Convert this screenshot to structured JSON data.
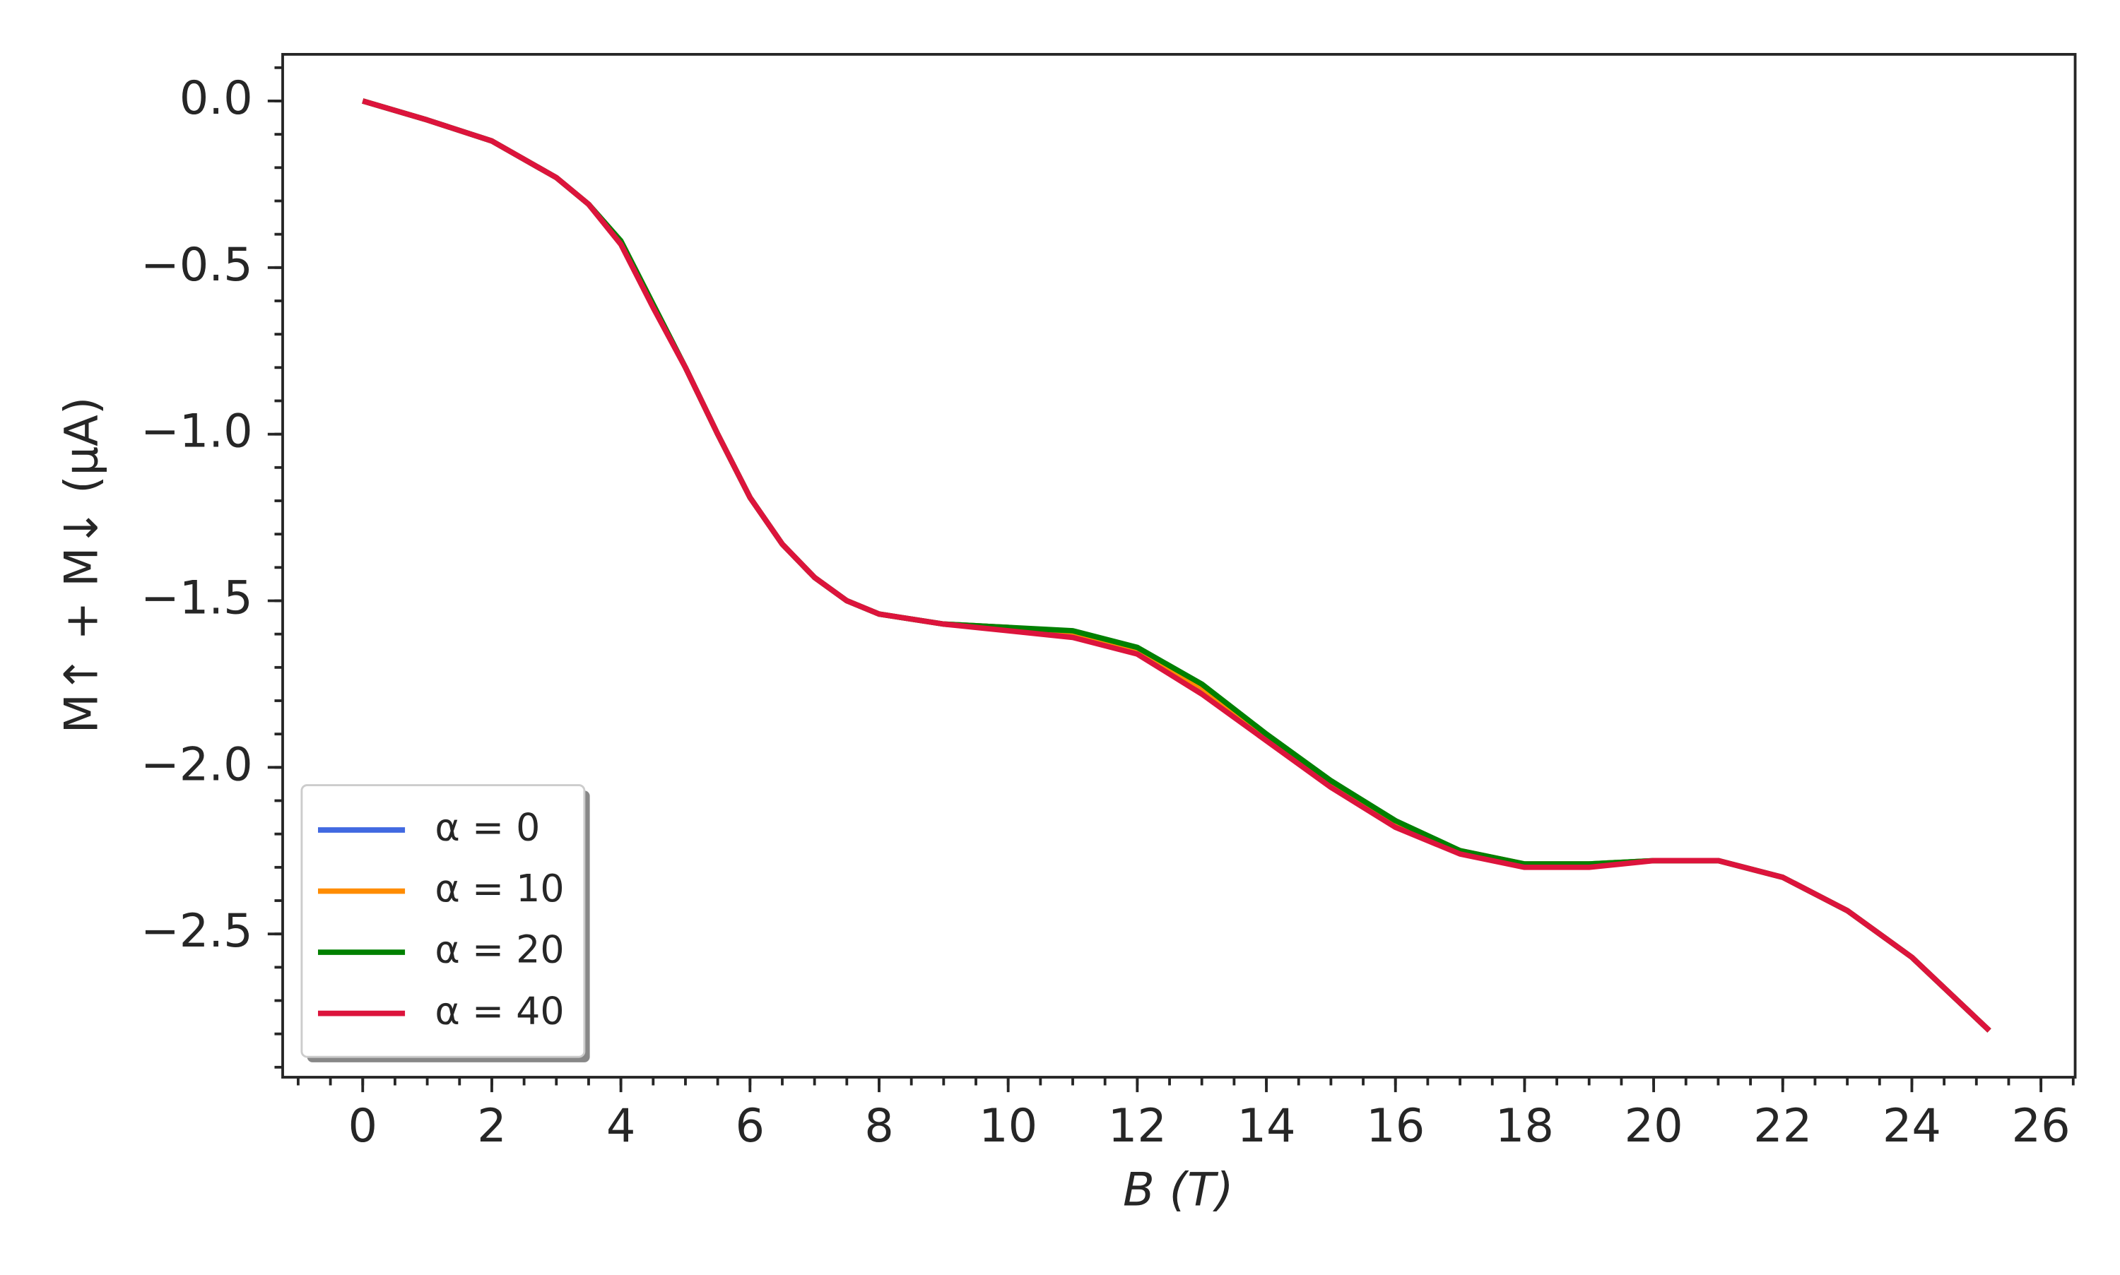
{
  "chart_data": {
    "type": "line",
    "xlabel": "B (T)",
    "ylabel": "M↑ + M↓  (μA)",
    "x": [
      0,
      1,
      2,
      3,
      3.5,
      4,
      4.5,
      5,
      5.5,
      6,
      6.5,
      7,
      7.5,
      8,
      9,
      10,
      11,
      12,
      13,
      14,
      15,
      16,
      17,
      18,
      19,
      20,
      21,
      22,
      23,
      24,
      25.2
    ],
    "series": [
      {
        "name": "α = 0",
        "color": "#4169e1",
        "values": [
          0,
          -0.057,
          -0.12,
          -0.23,
          -0.31,
          -0.43,
          -0.62,
          -0.8,
          -1.0,
          -1.19,
          -1.33,
          -1.43,
          -1.5,
          -1.54,
          -1.57,
          -1.58,
          -1.6,
          -1.65,
          -1.77,
          -1.91,
          -2.05,
          -2.17,
          -2.25,
          -2.29,
          -2.29,
          -2.28,
          -2.28,
          -2.33,
          -2.43,
          -2.57,
          -2.79
        ]
      },
      {
        "name": "α = 10",
        "color": "#ff8c00",
        "values": [
          0,
          -0.057,
          -0.12,
          -0.23,
          -0.31,
          -0.43,
          -0.62,
          -0.8,
          -1.0,
          -1.19,
          -1.33,
          -1.43,
          -1.5,
          -1.54,
          -1.57,
          -1.58,
          -1.6,
          -1.65,
          -1.76,
          -1.91,
          -2.05,
          -2.17,
          -2.25,
          -2.29,
          -2.29,
          -2.28,
          -2.28,
          -2.33,
          -2.43,
          -2.57,
          -2.79
        ]
      },
      {
        "name": "α = 20",
        "color": "#008000",
        "values": [
          0,
          -0.057,
          -0.12,
          -0.23,
          -0.31,
          -0.42,
          -0.61,
          -0.8,
          -1.0,
          -1.19,
          -1.33,
          -1.43,
          -1.5,
          -1.54,
          -1.57,
          -1.58,
          -1.59,
          -1.64,
          -1.75,
          -1.9,
          -2.04,
          -2.16,
          -2.25,
          -2.29,
          -2.29,
          -2.28,
          -2.28,
          -2.33,
          -2.43,
          -2.57,
          -2.79
        ]
      },
      {
        "name": "α = 40",
        "color": "#dc143c",
        "values": [
          0,
          -0.057,
          -0.12,
          -0.23,
          -0.31,
          -0.43,
          -0.62,
          -0.8,
          -1.0,
          -1.19,
          -1.33,
          -1.43,
          -1.5,
          -1.54,
          -1.57,
          -1.59,
          -1.61,
          -1.66,
          -1.78,
          -1.92,
          -2.06,
          -2.18,
          -2.26,
          -2.3,
          -2.3,
          -2.28,
          -2.28,
          -2.33,
          -2.43,
          -2.57,
          -2.79
        ]
      }
    ],
    "xlim": [
      -1.24,
      26.53
    ],
    "ylim": [
      -2.93,
      0.14
    ],
    "xticks": [
      0,
      2,
      4,
      6,
      8,
      10,
      12,
      14,
      16,
      18,
      20,
      22,
      24,
      26
    ],
    "yticks": [
      {
        "value": 0,
        "label": "0.0"
      },
      {
        "value": -0.5,
        "label": "−0.5"
      },
      {
        "value": -1,
        "label": "−1.0"
      },
      {
        "value": -1.5,
        "label": "−1.5"
      },
      {
        "value": -2,
        "label": "−2.0"
      },
      {
        "value": -2.5,
        "label": "−2.5"
      }
    ],
    "minor_ticks": {
      "x": 0.5,
      "y": 0.1
    },
    "grid": false,
    "legend": "lower left"
  }
}
